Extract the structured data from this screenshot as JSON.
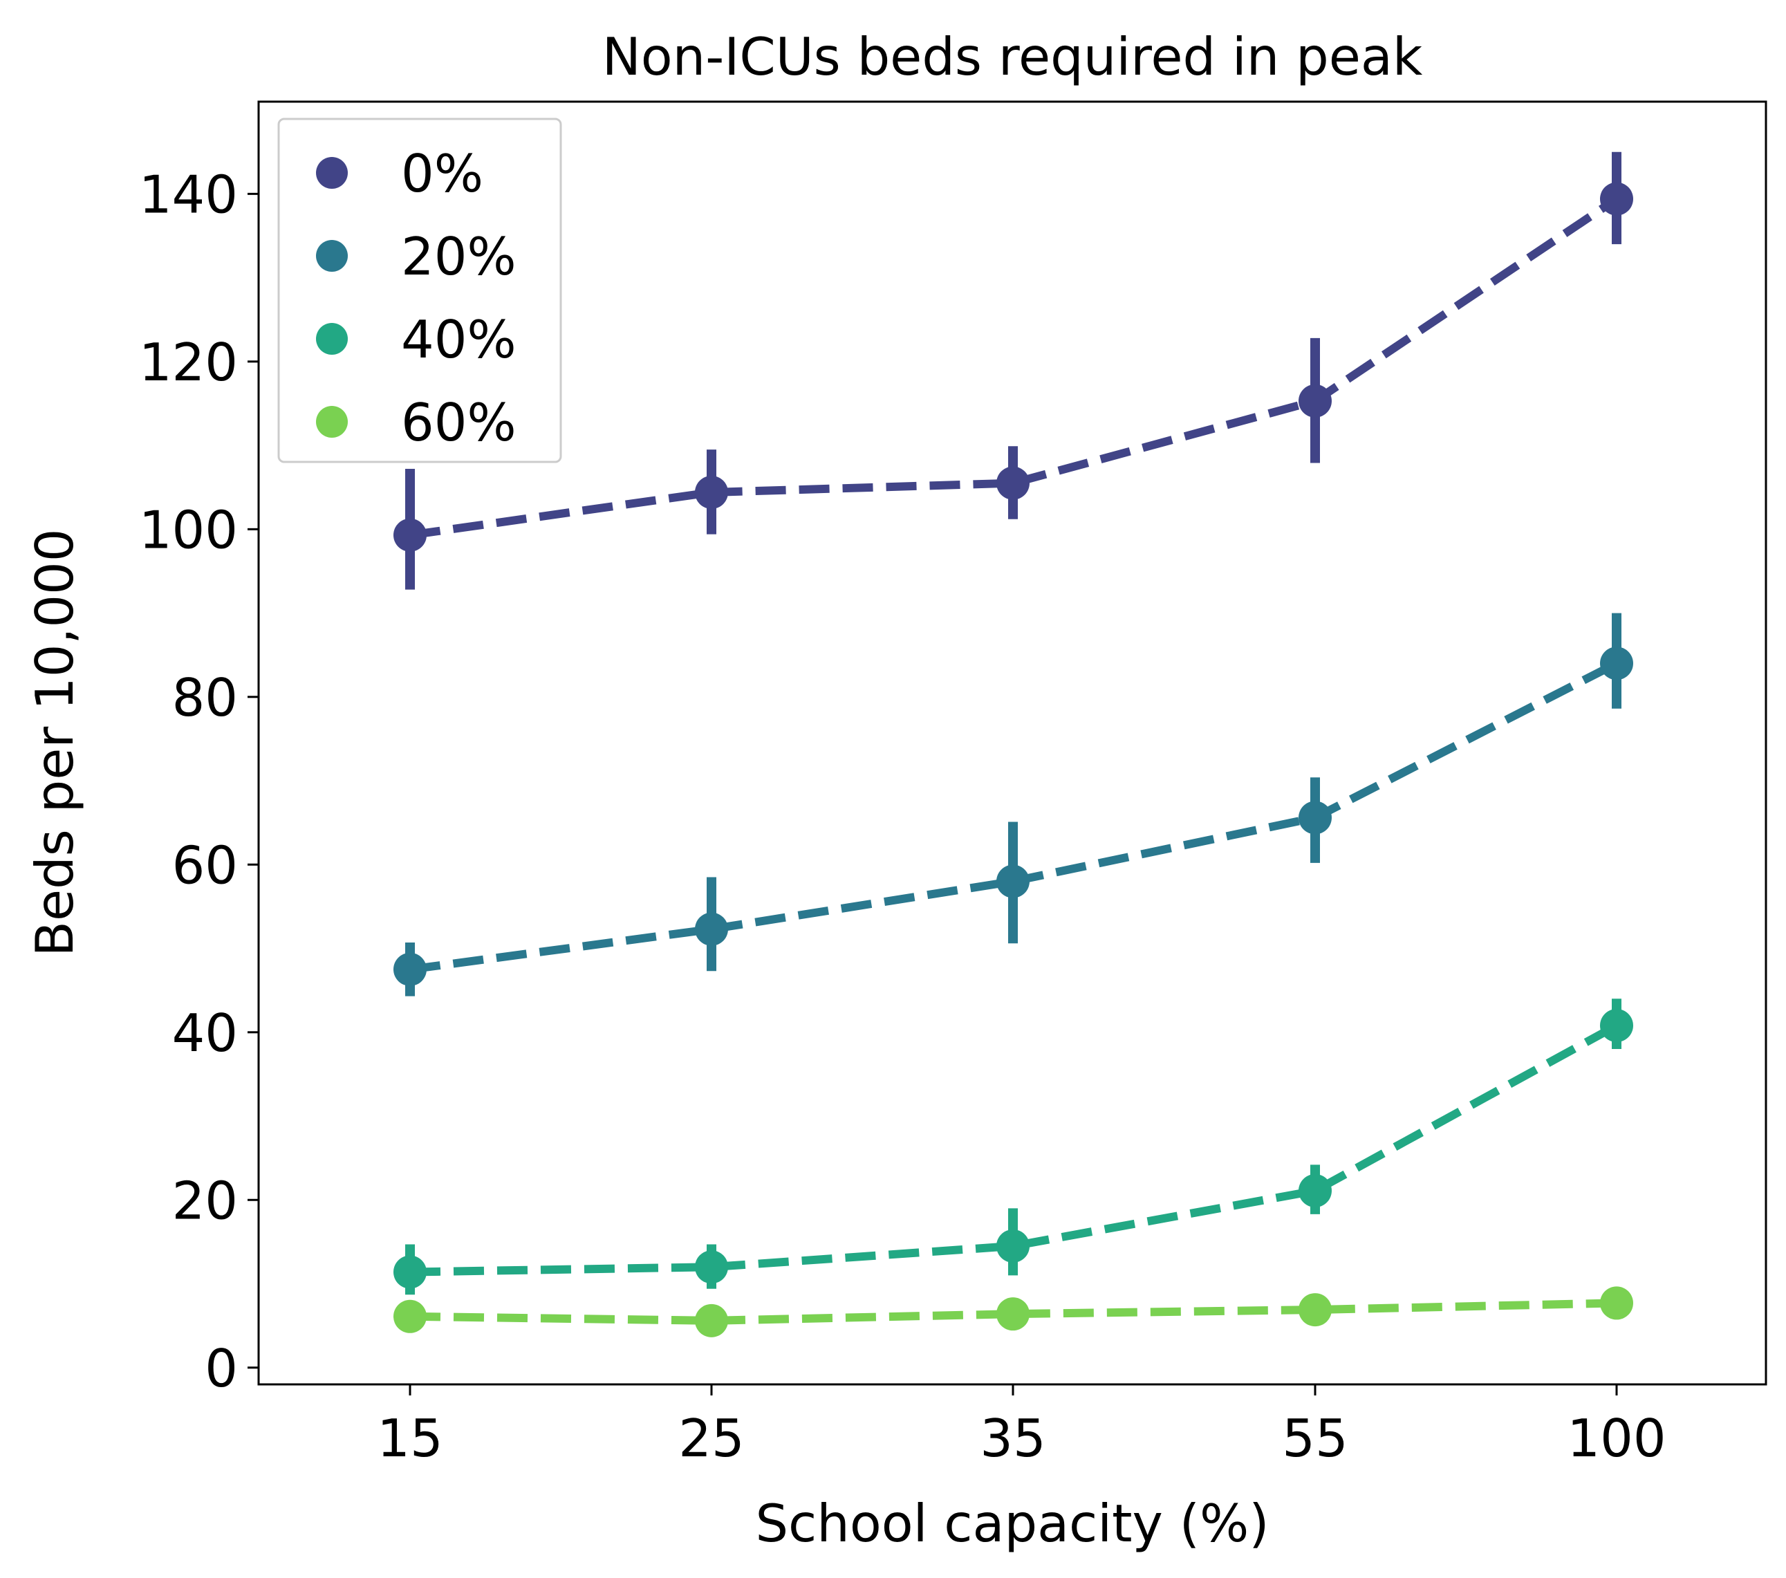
{
  "chart_data": {
    "type": "line",
    "title": "Non-ICUs beds required in peak",
    "xlabel": "School capacity (%)",
    "ylabel": "Beds per 10,000",
    "categories": [
      "15",
      "25",
      "35",
      "55",
      "100"
    ],
    "ylim": [
      -2,
      151
    ],
    "yticks": [
      "0",
      "20",
      "40",
      "60",
      "80",
      "100",
      "120",
      "140"
    ],
    "grid": false,
    "legend_position": "top-left",
    "series": [
      {
        "name": "0%",
        "color": "#414487",
        "values": [
          99.3,
          104.4,
          105.5,
          115.3,
          139.4
        ],
        "err_low": [
          92.8,
          99.4,
          101.2,
          107.9,
          134.0
        ],
        "err_high": [
          107.2,
          109.5,
          109.9,
          122.8,
          145.0
        ]
      },
      {
        "name": "20%",
        "color": "#2a788e",
        "values": [
          47.5,
          52.3,
          58.0,
          65.6,
          84.0
        ],
        "err_low": [
          44.3,
          47.3,
          50.6,
          60.2,
          78.6
        ],
        "err_high": [
          50.7,
          58.5,
          65.1,
          70.4,
          90.0
        ]
      },
      {
        "name": "40%",
        "color": "#22a884",
        "values": [
          11.4,
          12.0,
          14.5,
          21.1,
          40.8
        ],
        "err_low": [
          8.7,
          9.4,
          11.0,
          18.3,
          38.0
        ],
        "err_high": [
          14.7,
          14.7,
          19.0,
          24.2,
          44.0
        ]
      },
      {
        "name": "60%",
        "color": "#7ad151",
        "values": [
          6.1,
          5.6,
          6.4,
          6.9,
          7.7
        ]
      }
    ]
  }
}
